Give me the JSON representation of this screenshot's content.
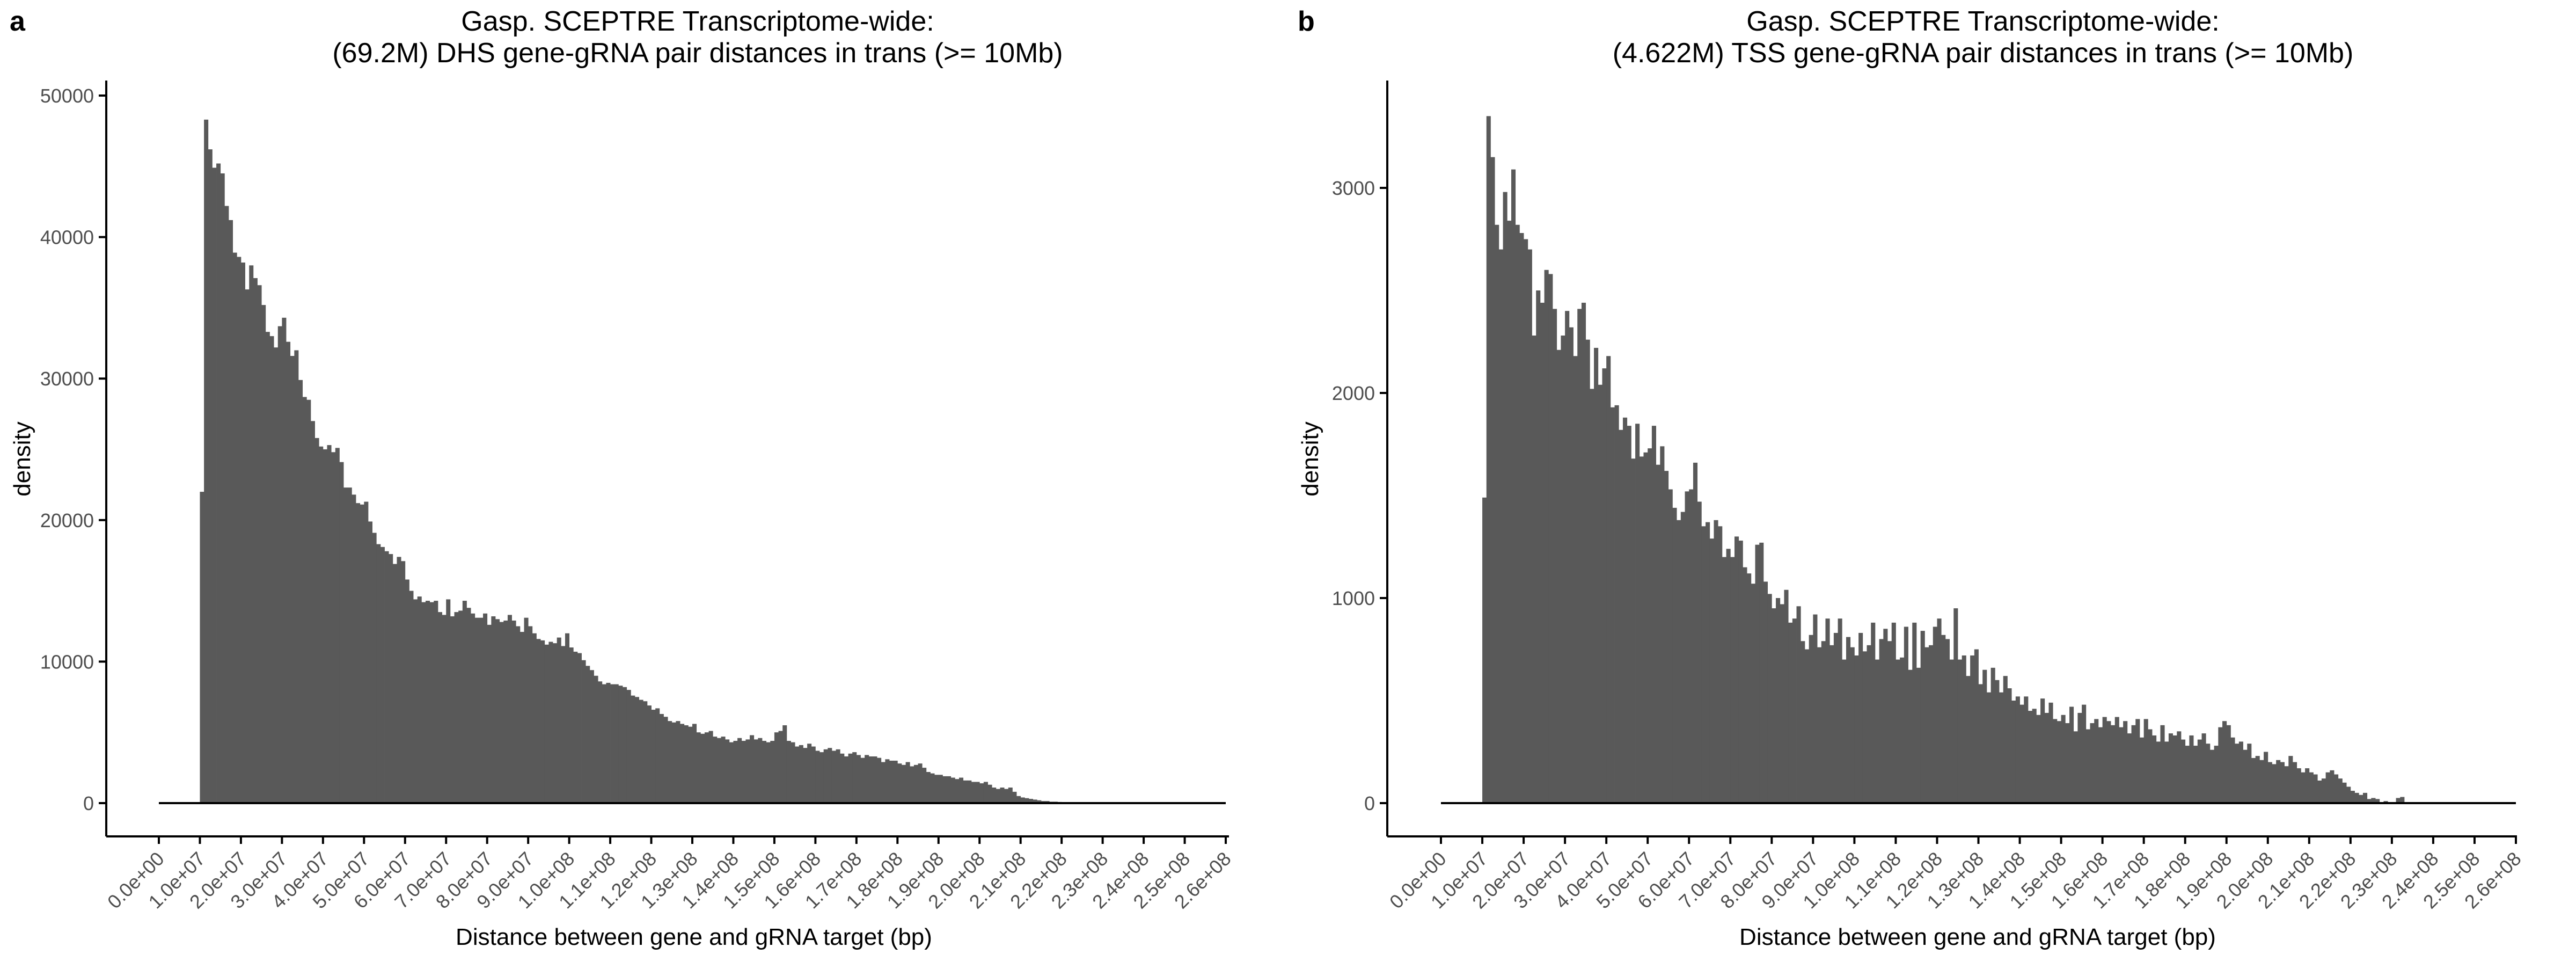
{
  "figure": {
    "panels": [
      "a",
      "b"
    ]
  },
  "colors": {
    "bar": "#595959",
    "axis": "#000000",
    "tick_label": "#4d4d4d",
    "text": "#000000",
    "background": "#ffffff"
  },
  "chart_data": [
    {
      "type": "bar",
      "panel_label": "a",
      "title_line1": "Gasp. SCEPTRE Transcriptome-wide:",
      "title_line2": "(69.2M) DHS gene-gRNA pair distances in trans (>= 10Mb)",
      "xlabel": "Distance between gene and gRNA target (bp)",
      "ylabel": "density",
      "xlim": [
        0,
        260000000
      ],
      "ylim": [
        0,
        50000
      ],
      "x_ticks": [
        0,
        10000000,
        20000000,
        30000000,
        40000000,
        50000000,
        60000000,
        70000000,
        80000000,
        90000000,
        100000000,
        110000000,
        120000000,
        130000000,
        140000000,
        150000000,
        160000000,
        170000000,
        180000000,
        190000000,
        200000000,
        210000000,
        220000000,
        230000000,
        240000000,
        250000000,
        260000000
      ],
      "x_tick_labels": [
        "0.0e+00",
        "1.0e+07",
        "2.0e+07",
        "3.0e+07",
        "4.0e+07",
        "5.0e+07",
        "6.0e+07",
        "7.0e+07",
        "8.0e+07",
        "9.0e+07",
        "1.0e+08",
        "1.1e+08",
        "1.2e+08",
        "1.3e+08",
        "1.4e+08",
        "1.5e+08",
        "1.6e+08",
        "1.7e+08",
        "1.8e+08",
        "1.9e+08",
        "2.0e+08",
        "2.1e+08",
        "2.2e+08",
        "2.3e+08",
        "2.4e+08",
        "2.5e+08",
        "2.6e+08"
      ],
      "y_ticks": [
        0,
        10000,
        20000,
        30000,
        40000,
        50000
      ],
      "y_tick_labels": [
        "0",
        "10000",
        "20000",
        "30000",
        "40000",
        "50000"
      ],
      "bin_width": 1000000,
      "bin_start": 10000000,
      "values": [
        22000,
        48300,
        46200,
        44900,
        45200,
        44500,
        42200,
        41200,
        38900,
        38600,
        38200,
        36300,
        38000,
        37100,
        36600,
        35200,
        33300,
        33000,
        32200,
        33700,
        34300,
        32600,
        31600,
        32000,
        29900,
        28700,
        28500,
        27000,
        25800,
        25200,
        25000,
        25300,
        24800,
        25100,
        24100,
        22300,
        22300,
        21800,
        21200,
        21100,
        21300,
        19900,
        19100,
        18300,
        18100,
        17800,
        17600,
        16900,
        17400,
        17100,
        15800,
        15000,
        14400,
        14600,
        14200,
        14300,
        14200,
        14300,
        13500,
        13300,
        14400,
        13200,
        13500,
        13600,
        14300,
        13800,
        13400,
        13100,
        13100,
        13400,
        12600,
        13200,
        13000,
        12800,
        12900,
        13300,
        12900,
        12500,
        12100,
        13100,
        12500,
        12000,
        11600,
        11500,
        11200,
        11400,
        11300,
        11700,
        11100,
        12000,
        11000,
        10700,
        10600,
        10100,
        9700,
        9400,
        9000,
        8600,
        8400,
        8500,
        8400,
        8400,
        8300,
        8200,
        8000,
        7600,
        7500,
        7300,
        7200,
        6900,
        6600,
        6700,
        6300,
        6100,
        5800,
        5700,
        5800,
        5600,
        5500,
        5400,
        5600,
        5000,
        4900,
        5000,
        5100,
        4700,
        4600,
        4700,
        4500,
        4300,
        4400,
        4600,
        4400,
        4500,
        4800,
        4500,
        4600,
        4400,
        4300,
        4400,
        5000,
        5100,
        5500,
        4400,
        4300,
        4000,
        4100,
        3900,
        4200,
        4000,
        3700,
        3600,
        3800,
        3900,
        3700,
        3800,
        3500,
        3300,
        3500,
        3600,
        3400,
        3200,
        3400,
        3300,
        3300,
        3200,
        2900,
        3100,
        3000,
        3000,
        2800,
        2700,
        2900,
        2600,
        2700,
        2800,
        2500,
        2200,
        2100,
        2000,
        2000,
        1900,
        1900,
        1800,
        1700,
        1800,
        1600,
        1600,
        1500,
        1500,
        1400,
        1500,
        1300,
        1100,
        1000,
        1100,
        1000,
        1100,
        800,
        500,
        400,
        350,
        300,
        250,
        200,
        150,
        150,
        100,
        100,
        80,
        50,
        30,
        20,
        10
      ]
    },
    {
      "type": "bar",
      "panel_label": "b",
      "title_line1": "Gasp. SCEPTRE Transcriptome-wide:",
      "title_line2": "(4.622M) TSS gene-gRNA pair distances in trans (>= 10Mb)",
      "xlabel": "Distance between gene and gRNA target (bp)",
      "ylabel": "density",
      "xlim": [
        0,
        260000000
      ],
      "ylim": [
        0,
        3450
      ],
      "x_ticks": [
        0,
        10000000,
        20000000,
        30000000,
        40000000,
        50000000,
        60000000,
        70000000,
        80000000,
        90000000,
        100000000,
        110000000,
        120000000,
        130000000,
        140000000,
        150000000,
        160000000,
        170000000,
        180000000,
        190000000,
        200000000,
        210000000,
        220000000,
        230000000,
        240000000,
        250000000,
        260000000
      ],
      "x_tick_labels": [
        "0.0e+00",
        "1.0e+07",
        "2.0e+07",
        "3.0e+07",
        "4.0e+07",
        "5.0e+07",
        "6.0e+07",
        "7.0e+07",
        "8.0e+07",
        "9.0e+07",
        "1.0e+08",
        "1.1e+08",
        "1.2e+08",
        "1.3e+08",
        "1.4e+08",
        "1.5e+08",
        "1.6e+08",
        "1.7e+08",
        "1.8e+08",
        "1.9e+08",
        "2.0e+08",
        "2.1e+08",
        "2.2e+08",
        "2.3e+08",
        "2.4e+08",
        "2.5e+08",
        "2.6e+08"
      ],
      "y_ticks": [
        0,
        1000,
        2000,
        3000
      ],
      "y_tick_labels": [
        "0",
        "1000",
        "2000",
        "3000"
      ],
      "bin_width": 1000000,
      "bin_start": 10000000,
      "values": [
        1490,
        3350,
        3150,
        2820,
        2700,
        2980,
        2840,
        3090,
        2820,
        2780,
        2750,
        2700,
        2280,
        2500,
        2440,
        2600,
        2580,
        2410,
        2210,
        2280,
        2400,
        2320,
        2180,
        2410,
        2440,
        2260,
        2020,
        2220,
        2040,
        2120,
        2180,
        1930,
        1940,
        1820,
        1880,
        1840,
        1680,
        1850,
        1690,
        1710,
        1730,
        1840,
        1650,
        1740,
        1620,
        1530,
        1440,
        1380,
        1420,
        1520,
        1530,
        1660,
        1470,
        1350,
        1370,
        1290,
        1380,
        1350,
        1200,
        1240,
        1200,
        1300,
        1280,
        1150,
        1120,
        1070,
        1260,
        1270,
        1080,
        1020,
        950,
        1000,
        970,
        1040,
        880,
        900,
        960,
        790,
        750,
        820,
        920,
        760,
        790,
        900,
        770,
        830,
        900,
        700,
        810,
        760,
        720,
        830,
        740,
        770,
        880,
        700,
        800,
        850,
        790,
        880,
        700,
        710,
        860,
        650,
        880,
        660,
        840,
        760,
        770,
        860,
        900,
        820,
        800,
        700,
        950,
        700,
        720,
        620,
        720,
        750,
        580,
        650,
        540,
        660,
        600,
        540,
        620,
        560,
        500,
        520,
        480,
        520,
        450,
        460,
        430,
        510,
        440,
        490,
        410,
        400,
        430,
        390,
        470,
        350,
        440,
        480,
        360,
        390,
        410,
        370,
        420,
        400,
        380,
        420,
        370,
        400,
        340,
        380,
        410,
        320,
        410,
        360,
        330,
        300,
        380,
        300,
        340,
        330,
        350,
        310,
        280,
        330,
        280,
        310,
        340,
        290,
        260,
        280,
        370,
        400,
        380,
        320,
        290,
        300,
        260,
        290,
        220,
        230,
        210,
        250,
        200,
        190,
        210,
        200,
        180,
        230,
        200,
        170,
        150,
        170,
        150,
        140,
        110,
        120,
        150,
        160,
        140,
        120,
        100,
        80,
        60,
        50,
        40,
        50,
        20,
        25,
        20,
        0,
        10,
        0,
        0,
        25,
        30,
        0,
        0,
        0,
        0,
        0,
        0,
        0,
        0,
        0,
        0,
        0
      ]
    }
  ]
}
